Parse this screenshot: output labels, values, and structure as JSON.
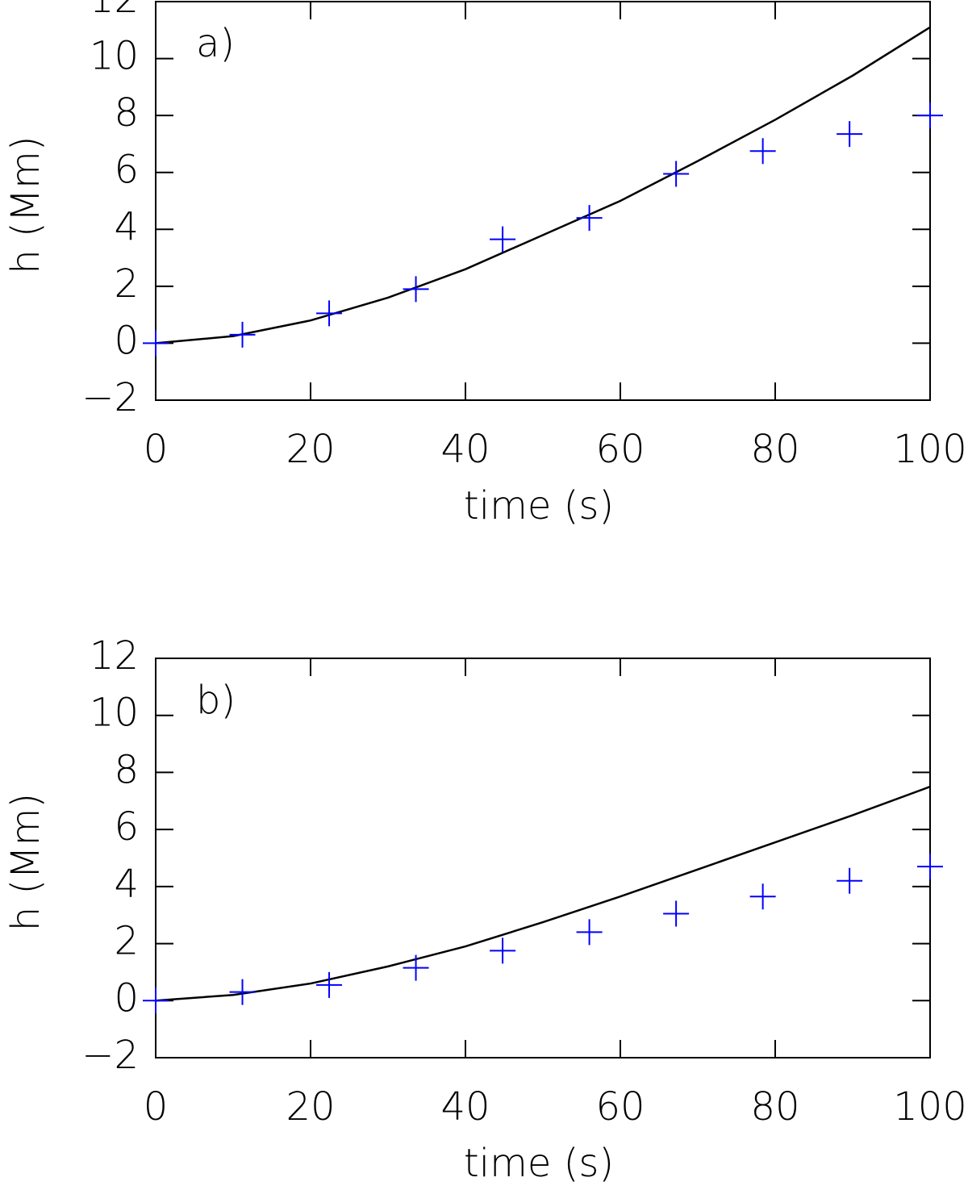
{
  "chart_data": [
    {
      "type": "line",
      "panel_label": "a)",
      "xlabel": "time (s)",
      "ylabel": "h (Mm)",
      "xlim": [
        0,
        100
      ],
      "xticks": [
        0,
        20,
        40,
        60,
        80,
        100
      ],
      "ylim": [
        -2,
        12
      ],
      "yticks": [
        {
          "value": -2,
          "label": "−2"
        },
        0,
        2,
        4,
        6,
        8,
        10,
        12
      ],
      "series": [
        {
          "color": "#000000",
          "mode": "line",
          "x": [
            0,
            10,
            20,
            30,
            40,
            50,
            60,
            70,
            80,
            90,
            100
          ],
          "values": [
            0,
            0.25,
            0.8,
            1.6,
            2.6,
            3.8,
            5.0,
            6.4,
            7.85,
            9.4,
            11.1
          ]
        },
        {
          "color": "#0000ff",
          "mode": "marker",
          "x": [
            0,
            11.2,
            22.4,
            33.6,
            44.8,
            56,
            67.2,
            78.4,
            89.6,
            100
          ],
          "values": [
            0,
            0.3,
            1.05,
            1.9,
            3.65,
            4.4,
            5.95,
            6.75,
            7.35,
            8.0
          ]
        }
      ]
    },
    {
      "type": "line",
      "panel_label": "b)",
      "xlabel": "time (s)",
      "ylabel": "h (Mm)",
      "xlim": [
        0,
        100
      ],
      "xticks": [
        0,
        20,
        40,
        60,
        80,
        100
      ],
      "ylim": [
        -2,
        12
      ],
      "yticks": [
        {
          "value": -2,
          "label": "−2"
        },
        0,
        2,
        4,
        6,
        8,
        10,
        12
      ],
      "series": [
        {
          "color": "#000000",
          "mode": "line",
          "x": [
            0,
            10,
            20,
            30,
            40,
            50,
            60,
            70,
            80,
            90,
            100
          ],
          "values": [
            0,
            0.2,
            0.6,
            1.2,
            1.9,
            2.75,
            3.65,
            4.6,
            5.55,
            6.5,
            7.5
          ]
        },
        {
          "color": "#0000ff",
          "mode": "marker",
          "x": [
            0,
            11.2,
            22.4,
            33.6,
            44.8,
            56,
            67.2,
            78.4,
            89.6,
            100
          ],
          "values": [
            0,
            0.3,
            0.55,
            1.15,
            1.75,
            2.4,
            3.05,
            3.65,
            4.2,
            4.7
          ]
        }
      ]
    }
  ]
}
